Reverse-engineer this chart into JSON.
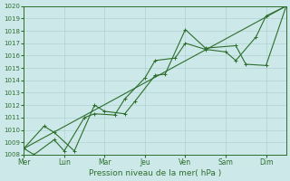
{
  "title": "",
  "xlabel": "Pression niveau de la mer( hPa )",
  "bg_color": "#cce8e8",
  "grid_color": "#aacccc",
  "line_color": "#2d6e2d",
  "ylim": [
    1008,
    1020
  ],
  "yticks": [
    1008,
    1009,
    1010,
    1011,
    1012,
    1013,
    1014,
    1015,
    1016,
    1017,
    1018,
    1019,
    1020
  ],
  "day_labels": [
    "Mer",
    "Lun",
    "Mar",
    "Jeu",
    "Ven",
    "Sam",
    "Dim"
  ],
  "day_positions": [
    0,
    2,
    4,
    6,
    8,
    10,
    12
  ],
  "xmin": 0,
  "xmax": 13,
  "line1_x": [
    0,
    0.5,
    1.5,
    2.0,
    3.0,
    3.5,
    4.5,
    5.0,
    6.0,
    6.5,
    7.5,
    8.0,
    9.0,
    10.0,
    10.5,
    11.5,
    12.0,
    13.0
  ],
  "line1_y": [
    1008.5,
    1008.0,
    1009.2,
    1008.3,
    1011.0,
    1011.3,
    1011.2,
    1012.5,
    1014.2,
    1015.6,
    1015.8,
    1017.0,
    1016.5,
    1016.3,
    1015.6,
    1017.5,
    1019.2,
    1020.0
  ],
  "line2_x": [
    0,
    1.0,
    1.5,
    2.5,
    3.5,
    4.0,
    5.0,
    5.5,
    6.5,
    7.0,
    8.0,
    9.0,
    10.5,
    11.0,
    12.0,
    13.0
  ],
  "line2_y": [
    1008.5,
    1010.3,
    1009.8,
    1008.3,
    1012.0,
    1011.5,
    1011.3,
    1012.3,
    1014.4,
    1014.5,
    1018.1,
    1016.6,
    1016.8,
    1015.3,
    1015.2,
    1020.0
  ],
  "trend_x": [
    0,
    13
  ],
  "trend_y": [
    1008.5,
    1020.0
  ]
}
